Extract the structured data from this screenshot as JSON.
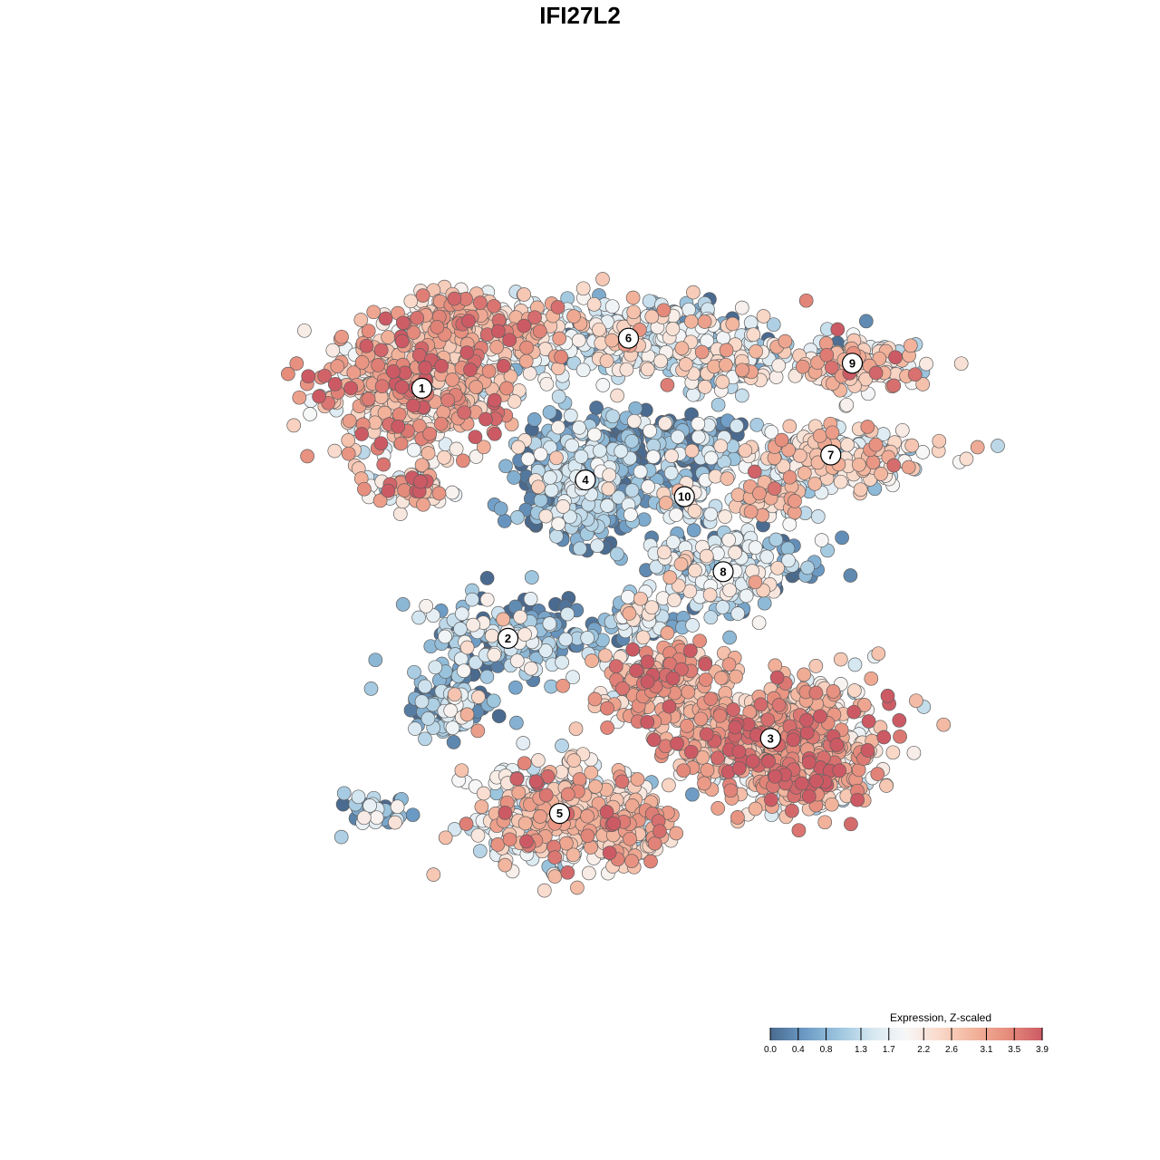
{
  "chart_data": {
    "type": "scatter",
    "title": "IFI27L2",
    "xlabel": "",
    "ylabel": "",
    "grid": false,
    "legend": {
      "title": "Expression, Z-scaled",
      "placement": "bottom-right",
      "ticks": [
        "0.0",
        "0.4",
        "0.8",
        "1.3",
        "1.7",
        "2.2",
        "2.6",
        "3.1",
        "3.5",
        "3.9"
      ],
      "range": [
        0.0,
        3.9
      ],
      "colors": [
        "#4a6a8f",
        "#6b9ac4",
        "#9cc5de",
        "#d6e7f1",
        "#f7f7f7",
        "#f9d8c8",
        "#f2b39b",
        "#e68c7c",
        "#cc5a64"
      ]
    },
    "clusters": [
      {
        "label": "1",
        "x": 0.29,
        "y": 0.73,
        "mean": 2.6
      },
      {
        "label": "2",
        "x": 0.39,
        "y": 0.43,
        "mean": 0.9
      },
      {
        "label": "3",
        "x": 0.695,
        "y": 0.31,
        "mean": 2.7
      },
      {
        "label": "4",
        "x": 0.48,
        "y": 0.62,
        "mean": 0.6
      },
      {
        "label": "5",
        "x": 0.45,
        "y": 0.22,
        "mean": 2.3
      },
      {
        "label": "6",
        "x": 0.53,
        "y": 0.79,
        "mean": 1.6
      },
      {
        "label": "7",
        "x": 0.765,
        "y": 0.65,
        "mean": 1.9
      },
      {
        "label": "8",
        "x": 0.64,
        "y": 0.51,
        "mean": 1.1
      },
      {
        "label": "9",
        "x": 0.79,
        "y": 0.76,
        "mean": 2.1
      },
      {
        "label": "10",
        "x": 0.595,
        "y": 0.6,
        "mean": 1.4
      }
    ]
  }
}
